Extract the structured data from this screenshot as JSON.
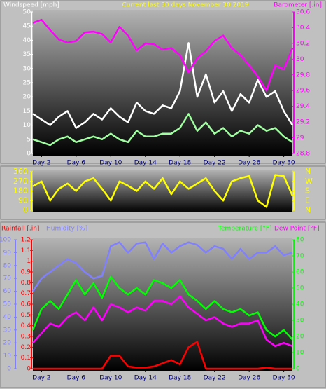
{
  "chart_data": [
    {
      "type": "line",
      "title": "Current last 30 days November 30 2019",
      "y_label": "Windspeed [mph]",
      "x": [
        1,
        2,
        3,
        4,
        5,
        6,
        7,
        8,
        9,
        10,
        11,
        12,
        13,
        14,
        15,
        16,
        17,
        18,
        19,
        20,
        21,
        22,
        23,
        24,
        25,
        26,
        27,
        28,
        29,
        30,
        31
      ],
      "xlim": [
        1,
        31
      ],
      "xticks": [
        {
          "value": 2,
          "label": "Day 2"
        },
        {
          "value": 6,
          "label": "Day 6"
        },
        {
          "value": 10,
          "label": "Day 10"
        },
        {
          "value": 14,
          "label": "Day 14"
        },
        {
          "value": 18,
          "label": "Day 18"
        },
        {
          "value": 22,
          "label": "Day 22"
        },
        {
          "value": 26,
          "label": "Day 26"
        },
        {
          "value": 30,
          "label": "Day 30"
        }
      ],
      "ylim": [
        0,
        50
      ],
      "yticks": [
        0,
        5,
        10,
        15,
        20,
        25,
        30,
        35,
        40,
        45,
        50
      ],
      "y_color": "#ffffff",
      "y2lim": [
        28.8,
        30.6
      ],
      "y2ticks": [
        28.8,
        29,
        29.2,
        29.4,
        29.6,
        29.8,
        30,
        30.2,
        30.4,
        30.6
      ],
      "y2_color": "#ff00ff",
      "series": [
        {
          "color": "#ffffff",
          "values": [
            14,
            12,
            10,
            13,
            15,
            9,
            11,
            14,
            12,
            16,
            13,
            11,
            18,
            15,
            14,
            17,
            16,
            22,
            39,
            20,
            28,
            18,
            22,
            15,
            21,
            18,
            26,
            20,
            22,
            15,
            10
          ]
        },
        {
          "color": "#a0ffa0",
          "values": [
            5,
            4,
            3,
            5,
            6,
            4,
            5,
            6,
            5,
            7,
            5,
            4,
            8,
            6,
            6,
            7,
            7,
            9,
            14,
            8,
            11,
            7,
            9,
            6,
            8,
            7,
            10,
            8,
            9,
            6,
            4
          ]
        },
        {
          "name": "Barometer [.in]",
          "color": "#ff00ff",
          "axis": "y2",
          "values": [
            30.46,
            30.5,
            30.37,
            30.25,
            30.21,
            30.23,
            30.34,
            30.35,
            30.32,
            30.21,
            30.41,
            30.3,
            30.11,
            30.2,
            30.19,
            30.12,
            30.14,
            30.05,
            29.83,
            30.01,
            30.1,
            30.23,
            30.3,
            30.14,
            30.05,
            29.92,
            29.78,
            29.6,
            29.92,
            29.87,
            30.14
          ]
        }
      ]
    },
    {
      "type": "line",
      "x": [
        1,
        2,
        3,
        4,
        5,
        6,
        7,
        8,
        9,
        10,
        11,
        12,
        13,
        14,
        15,
        16,
        17,
        18,
        19,
        20,
        21,
        22,
        23,
        24,
        25,
        26,
        27,
        28,
        29,
        30,
        31
      ],
      "xlim": [
        1,
        31
      ],
      "ylim": [
        0,
        360
      ],
      "yticks": [
        0,
        90,
        180,
        270,
        360
      ],
      "y_color": "#ffff00",
      "y2lim": [
        0,
        360
      ],
      "y2ticks": [
        {
          "value": 0,
          "label": "N"
        },
        {
          "value": 90,
          "label": "E"
        },
        {
          "value": 180,
          "label": "S"
        },
        {
          "value": 270,
          "label": "W"
        },
        {
          "value": 360,
          "label": "N"
        }
      ],
      "y2_color": "#ffff00",
      "series": [
        {
          "color": "#ffff00",
          "values": [
            225,
            270,
            90,
            200,
            250,
            180,
            270,
            300,
            200,
            90,
            270,
            230,
            180,
            270,
            200,
            300,
            150,
            270,
            200,
            250,
            300,
            180,
            90,
            270,
            300,
            320,
            90,
            30,
            330,
            320,
            135
          ]
        }
      ]
    },
    {
      "type": "line",
      "x": [
        1,
        2,
        3,
        4,
        5,
        6,
        7,
        8,
        9,
        10,
        11,
        12,
        13,
        14,
        15,
        16,
        17,
        18,
        19,
        20,
        21,
        22,
        23,
        24,
        25,
        26,
        27,
        28,
        29,
        30,
        31
      ],
      "xlim": [
        1,
        31
      ],
      "xticks": [
        {
          "value": 2,
          "label": "Day 2"
        },
        {
          "value": 6,
          "label": "Day 6"
        },
        {
          "value": 10,
          "label": "Day 10"
        },
        {
          "value": 14,
          "label": "Day 14"
        },
        {
          "value": 18,
          "label": "Day 18"
        },
        {
          "value": 22,
          "label": "Day 22"
        },
        {
          "value": 26,
          "label": "Day 26"
        },
        {
          "value": 30,
          "label": "Day 30"
        }
      ],
      "ylim": [
        0,
        1.2
      ],
      "yticks": [
        0,
        0.1,
        0.2,
        0.3,
        0.4,
        0.5,
        0.6,
        0.7,
        0.8,
        0.9,
        1,
        1.1,
        1.2
      ],
      "y_color": "#ff0000",
      "y2lim": [
        0,
        80
      ],
      "y2ticks": [
        0,
        10,
        20,
        30,
        40,
        50,
        60,
        70,
        80
      ],
      "y2_color": "#00ff00",
      "y3lim": [
        0,
        100
      ],
      "y3ticks": [
        0,
        10,
        20,
        30,
        40,
        50,
        60,
        70,
        80,
        90,
        100
      ],
      "y3_color": "#8080ff",
      "series": [
        {
          "name": "Rainfall [.in]",
          "color": "#ff0000",
          "values": [
            0,
            0,
            0,
            0,
            0,
            0,
            0,
            0,
            0,
            0.12,
            0.12,
            0.02,
            0.01,
            0.01,
            0.02,
            0.05,
            0.08,
            0.04,
            0.2,
            0.25,
            0,
            0,
            0,
            0,
            0,
            0,
            0,
            0.01,
            0,
            0,
            0
          ]
        },
        {
          "name": "Humidity [%]",
          "color": "#8080ff",
          "axis": "y3",
          "values": [
            60,
            70,
            75,
            80,
            85,
            82,
            75,
            70,
            72,
            95,
            98,
            90,
            97,
            98,
            85,
            97,
            90,
            95,
            98,
            96,
            90,
            95,
            93,
            85,
            93,
            85,
            90,
            90,
            95,
            88,
            90
          ]
        },
        {
          "name": "Temperature [°F]",
          "color": "#00ff00",
          "axis": "y2",
          "values": [
            24,
            37,
            42,
            37,
            46,
            55,
            46,
            53,
            44,
            57,
            50,
            46,
            50,
            46,
            55,
            53,
            50,
            55,
            46,
            42,
            37,
            42,
            37,
            35,
            37,
            33,
            35,
            24,
            20,
            24,
            18
          ]
        },
        {
          "name": "Dew Point [°F]",
          "color": "#ff00ff",
          "axis": "y2",
          "values": [
            16,
            22,
            28,
            26,
            32,
            35,
            30,
            38,
            30,
            40,
            38,
            35,
            38,
            36,
            42,
            42,
            40,
            45,
            38,
            34,
            30,
            32,
            28,
            26,
            28,
            28,
            30,
            18,
            14,
            16,
            14
          ]
        }
      ]
    }
  ]
}
